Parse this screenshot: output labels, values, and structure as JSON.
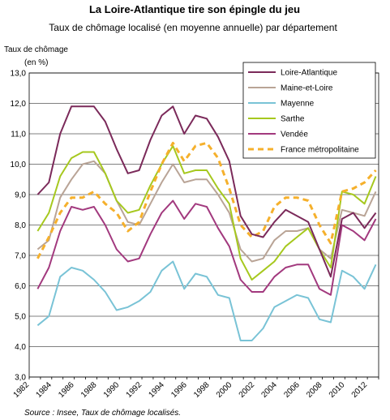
{
  "chart_data": {
    "type": "line",
    "title": "La Loire-Atlantique tire son épingle du jeu",
    "subtitle": "Taux de chômage localisé (en moyenne annuelle) par département",
    "ylabel_line1": "Taux de chômage",
    "ylabel_line2": "(en %)",
    "source": "Source : Insee, Taux de chômage localisés.",
    "ylim": [
      3.0,
      13.0
    ],
    "yticks": [
      "3,0",
      "4,0",
      "5,0",
      "6,0",
      "7,0",
      "8,0",
      "9,0",
      "10,0",
      "11,0",
      "12,0",
      "13,0"
    ],
    "xticks": [
      "1982",
      "1984",
      "1986",
      "1988",
      "1990",
      "1992",
      "1994",
      "1996",
      "1998",
      "2000",
      "2002",
      "2004",
      "2006",
      "2008",
      "2010",
      "2012"
    ],
    "xlim": [
      1982,
      2013
    ],
    "legend_position": "top-right",
    "grid": "horizontal",
    "x": [
      1982.75,
      1983.75,
      1984.75,
      1985.75,
      1986.75,
      1987.75,
      1988.75,
      1989.75,
      1990.75,
      1991.75,
      1992.75,
      1993.75,
      1994.75,
      1995.75,
      1996.75,
      1997.75,
      1998.75,
      1999.75,
      2000.75,
      2001.75,
      2002.75,
      2003.75,
      2004.75,
      2005.75,
      2006.75,
      2007.75,
      2008.75,
      2009.75,
      2010.75,
      2011.75,
      2012.75
    ],
    "series": [
      {
        "name": "Loire-Atlantique",
        "color": "#7b2a5a",
        "dash": "solid",
        "values": [
          9.0,
          9.4,
          11.0,
          11.9,
          11.9,
          11.9,
          11.4,
          10.5,
          9.7,
          9.8,
          10.8,
          11.6,
          11.9,
          11.0,
          11.6,
          11.5,
          10.9,
          10.1,
          8.3,
          7.7,
          7.6,
          8.1,
          8.5,
          8.3,
          8.1,
          7.2,
          6.3,
          8.2,
          8.4,
          7.9,
          8.4
        ]
      },
      {
        "name": "Maine-et-Loire",
        "color": "#b9a496",
        "dash": "solid",
        "values": [
          7.2,
          7.5,
          8.9,
          9.5,
          10.0,
          10.1,
          9.7,
          8.8,
          8.1,
          8.0,
          8.7,
          9.4,
          10.0,
          9.4,
          9.5,
          9.5,
          9.0,
          8.4,
          7.2,
          6.8,
          6.9,
          7.5,
          7.8,
          7.8,
          7.9,
          7.2,
          6.9,
          8.5,
          8.4,
          8.3,
          9.1
        ]
      },
      {
        "name": "Mayenne",
        "color": "#79c3d6",
        "dash": "solid",
        "values": [
          4.7,
          5.0,
          6.3,
          6.6,
          6.5,
          6.2,
          5.8,
          5.2,
          5.3,
          5.5,
          5.8,
          6.5,
          6.8,
          5.9,
          6.4,
          6.3,
          5.7,
          5.6,
          4.2,
          4.2,
          4.6,
          5.3,
          5.5,
          5.7,
          5.6,
          4.9,
          4.8,
          6.5,
          6.3,
          5.9,
          6.7
        ]
      },
      {
        "name": "Sarthe",
        "color": "#a6c81e",
        "dash": "solid",
        "values": [
          7.8,
          8.4,
          9.6,
          10.2,
          10.4,
          10.4,
          9.7,
          8.8,
          8.4,
          8.5,
          9.3,
          10.0,
          10.6,
          9.7,
          9.8,
          9.8,
          9.2,
          8.7,
          6.9,
          6.2,
          6.5,
          6.8,
          7.3,
          7.6,
          7.9,
          7.2,
          6.6,
          9.1,
          9.0,
          8.7,
          9.6
        ]
      },
      {
        "name": "Vendée",
        "color": "#a2397e",
        "dash": "solid",
        "values": [
          5.9,
          6.6,
          7.8,
          8.6,
          8.5,
          8.6,
          8.0,
          7.2,
          6.8,
          6.9,
          7.7,
          8.4,
          8.8,
          8.2,
          8.7,
          8.6,
          7.9,
          7.3,
          6.2,
          5.8,
          5.8,
          6.3,
          6.6,
          6.7,
          6.7,
          5.9,
          5.7,
          8.0,
          7.8,
          7.5,
          8.2
        ]
      },
      {
        "name": "France métropolitaine",
        "color": "#f5b02c",
        "dash": "dashed",
        "values": [
          6.9,
          7.6,
          8.4,
          8.9,
          8.9,
          9.1,
          8.7,
          8.4,
          7.8,
          8.1,
          9.1,
          10.0,
          10.7,
          10.1,
          10.6,
          10.7,
          10.2,
          9.2,
          8.0,
          7.6,
          7.8,
          8.6,
          8.9,
          8.9,
          8.8,
          8.0,
          7.4,
          9.1,
          9.2,
          9.4,
          9.8
        ]
      }
    ]
  }
}
